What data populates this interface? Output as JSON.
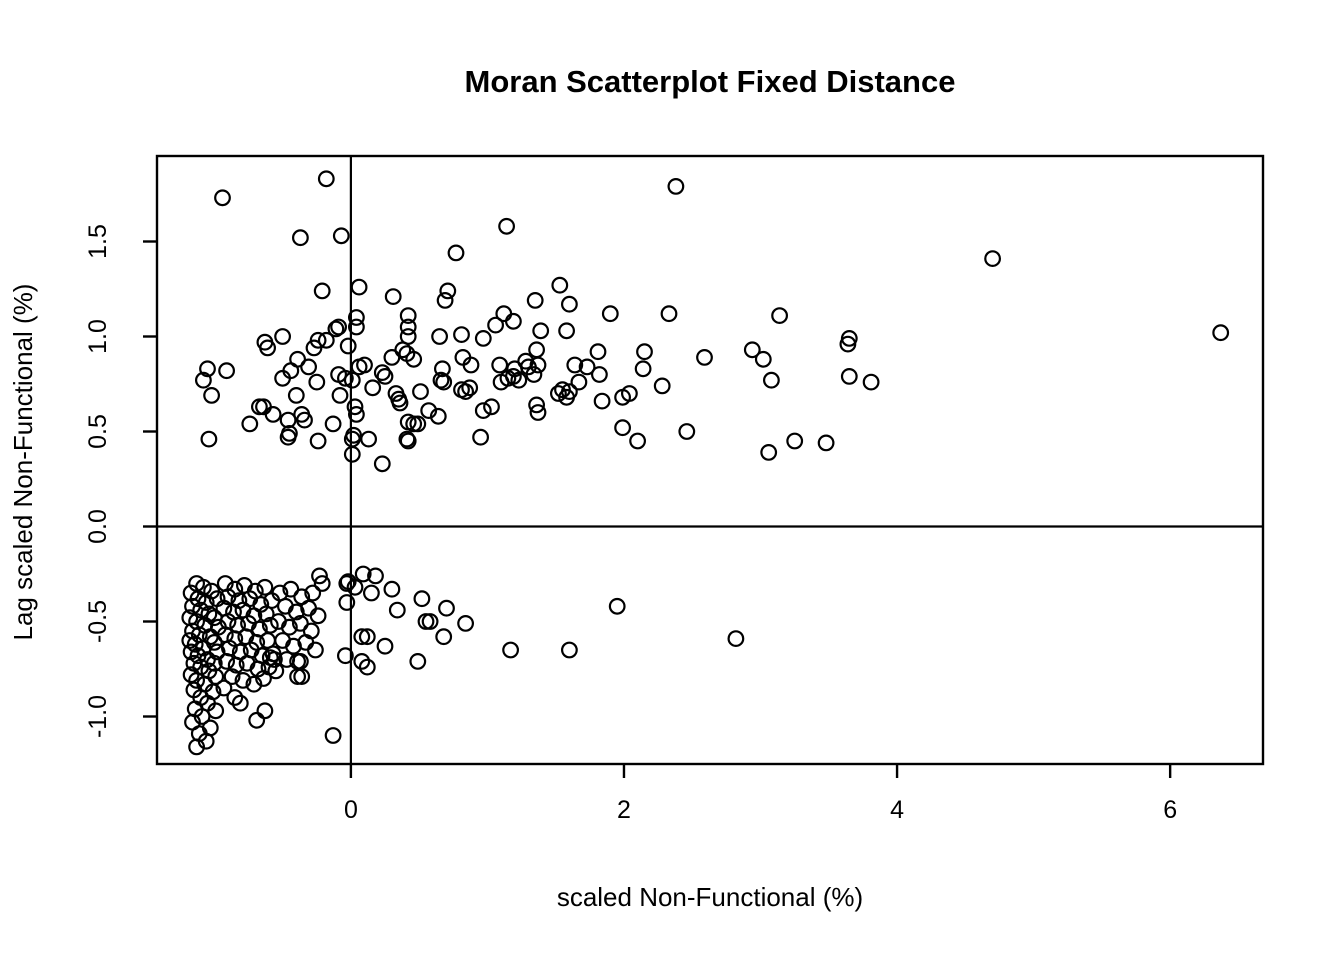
{
  "chart_data": {
    "type": "scatter",
    "title": "Moran Scatterplot Fixed Distance",
    "xlabel": "scaled Non-Functional (%)",
    "ylabel": "Lag scaled Non-Functional (%)",
    "xlim": [
      -1.42,
      6.68
    ],
    "ylim": [
      -1.25,
      1.95
    ],
    "x_tick_values": [
      0,
      2,
      4,
      6
    ],
    "x_tick_labels": [
      "0",
      "2",
      "4",
      "6"
    ],
    "y_tick_values": [
      -1.0,
      -0.5,
      0.0,
      0.5,
      1.0,
      1.5
    ],
    "y_tick_labels": [
      "-1.0",
      "-0.5",
      "0.0",
      "0.5",
      "1.0",
      "1.5"
    ],
    "grid": false,
    "legend": null,
    "reference_lines": {
      "vertical_x": 0,
      "horizontal_y": 0
    },
    "marker": {
      "shape": "open-circle",
      "color": "#000000",
      "radius_px": 7.3,
      "stroke_px": 2.2
    },
    "points": [
      [
        -0.18,
        1.83
      ],
      [
        -0.94,
        1.73
      ],
      [
        2.38,
        1.79
      ],
      [
        -0.37,
        1.52
      ],
      [
        -0.07,
        1.53
      ],
      [
        1.14,
        1.58
      ],
      [
        0.77,
        1.44
      ],
      [
        4.7,
        1.41
      ],
      [
        6.37,
        1.02
      ],
      [
        0.06,
        1.26
      ],
      [
        -0.21,
        1.24
      ],
      [
        0.31,
        1.21
      ],
      [
        0.71,
        1.24
      ],
      [
        0.69,
        1.19
      ],
      [
        1.53,
        1.27
      ],
      [
        1.35,
        1.19
      ],
      [
        1.6,
        1.17
      ],
      [
        0.42,
        1.11
      ],
      [
        0.42,
        1.05
      ],
      [
        0.42,
        1.0
      ],
      [
        0.04,
        1.1
      ],
      [
        0.04,
        1.05
      ],
      [
        1.12,
        1.12
      ],
      [
        1.19,
        1.08
      ],
      [
        1.06,
        1.06
      ],
      [
        -0.09,
        1.05
      ],
      [
        -0.11,
        1.04
      ],
      [
        1.9,
        1.12
      ],
      [
        2.33,
        1.12
      ],
      [
        3.14,
        1.11
      ],
      [
        1.39,
        1.03
      ],
      [
        1.58,
        1.03
      ],
      [
        -0.5,
        1.0
      ],
      [
        0.65,
        1.0
      ],
      [
        0.81,
        1.01
      ],
      [
        0.97,
        0.99
      ],
      [
        -0.18,
        0.98
      ],
      [
        -0.63,
        0.97
      ],
      [
        -0.24,
        0.98
      ],
      [
        3.65,
        0.99
      ],
      [
        -0.61,
        0.94
      ],
      [
        -0.27,
        0.94
      ],
      [
        -0.02,
        0.95
      ],
      [
        0.1,
        0.85
      ],
      [
        0.06,
        0.84
      ],
      [
        0.3,
        0.89
      ],
      [
        0.38,
        0.93
      ],
      [
        0.41,
        0.91
      ],
      [
        0.46,
        0.88
      ],
      [
        0.82,
        0.89
      ],
      [
        0.88,
        0.85
      ],
      [
        1.09,
        0.85
      ],
      [
        1.2,
        0.83
      ],
      [
        1.28,
        0.87
      ],
      [
        1.3,
        0.84
      ],
      [
        1.36,
        0.93
      ],
      [
        1.37,
        0.85
      ],
      [
        1.34,
        0.8
      ],
      [
        1.64,
        0.85
      ],
      [
        1.73,
        0.84
      ],
      [
        1.81,
        0.92
      ],
      [
        1.82,
        0.8
      ],
      [
        2.15,
        0.92
      ],
      [
        2.14,
        0.83
      ],
      [
        2.59,
        0.89
      ],
      [
        2.94,
        0.93
      ],
      [
        3.02,
        0.88
      ],
      [
        3.64,
        0.96
      ],
      [
        -1.05,
        0.83
      ],
      [
        -0.91,
        0.82
      ],
      [
        -1.08,
        0.77
      ],
      [
        -0.39,
        0.88
      ],
      [
        -0.31,
        0.84
      ],
      [
        -0.44,
        0.82
      ],
      [
        -0.5,
        0.78
      ],
      [
        -0.25,
        0.76
      ],
      [
        -0.09,
        0.8
      ],
      [
        -0.04,
        0.78
      ],
      [
        0.01,
        0.77
      ],
      [
        0.23,
        0.81
      ],
      [
        0.25,
        0.79
      ],
      [
        0.16,
        0.73
      ],
      [
        0.51,
        0.71
      ],
      [
        0.67,
        0.83
      ],
      [
        0.66,
        0.77
      ],
      [
        0.68,
        0.76
      ],
      [
        0.81,
        0.72
      ],
      [
        0.84,
        0.71
      ],
      [
        0.87,
        0.73
      ],
      [
        1.1,
        0.76
      ],
      [
        1.15,
        0.78
      ],
      [
        1.19,
        0.79
      ],
      [
        1.23,
        0.77
      ],
      [
        1.52,
        0.7
      ],
      [
        1.55,
        0.72
      ],
      [
        1.58,
        0.68
      ],
      [
        1.6,
        0.71
      ],
      [
        1.67,
        0.76
      ],
      [
        2.28,
        0.74
      ],
      [
        3.08,
        0.77
      ],
      [
        3.65,
        0.79
      ],
      [
        3.81,
        0.76
      ],
      [
        -1.02,
        0.69
      ],
      [
        -0.4,
        0.69
      ],
      [
        -0.67,
        0.63
      ],
      [
        -0.64,
        0.63
      ],
      [
        -0.08,
        0.69
      ],
      [
        0.03,
        0.63
      ],
      [
        0.33,
        0.7
      ],
      [
        0.35,
        0.67
      ],
      [
        0.36,
        0.65
      ],
      [
        1.36,
        0.64
      ],
      [
        1.37,
        0.6
      ],
      [
        1.84,
        0.66
      ],
      [
        1.99,
        0.68
      ],
      [
        2.04,
        0.7
      ],
      [
        -0.57,
        0.59
      ],
      [
        -0.46,
        0.56
      ],
      [
        -0.36,
        0.59
      ],
      [
        -0.34,
        0.56
      ],
      [
        -0.74,
        0.54
      ],
      [
        -0.13,
        0.54
      ],
      [
        0.04,
        0.59
      ],
      [
        0.42,
        0.55
      ],
      [
        0.46,
        0.54
      ],
      [
        0.49,
        0.54
      ],
      [
        0.57,
        0.61
      ],
      [
        0.64,
        0.58
      ],
      [
        0.97,
        0.61
      ],
      [
        1.03,
        0.63
      ],
      [
        -0.45,
        0.49
      ],
      [
        -1.04,
        0.46
      ],
      [
        -0.46,
        0.47
      ],
      [
        -0.24,
        0.45
      ],
      [
        0.02,
        0.48
      ],
      [
        0.01,
        0.46
      ],
      [
        0.13,
        0.46
      ],
      [
        0.41,
        0.46
      ],
      [
        0.42,
        0.45
      ],
      [
        0.95,
        0.47
      ],
      [
        1.99,
        0.52
      ],
      [
        2.1,
        0.45
      ],
      [
        2.46,
        0.5
      ],
      [
        3.25,
        0.45
      ],
      [
        3.48,
        0.44
      ],
      [
        0.01,
        0.38
      ],
      [
        0.23,
        0.33
      ],
      [
        3.06,
        0.39
      ],
      [
        0.09,
        -0.25
      ],
      [
        0.18,
        -0.26
      ],
      [
        -0.02,
        -0.29
      ],
      [
        0.03,
        -0.32
      ],
      [
        0.15,
        -0.35
      ],
      [
        0.3,
        -0.33
      ],
      [
        0.34,
        -0.44
      ],
      [
        0.52,
        -0.38
      ],
      [
        0.55,
        -0.5
      ],
      [
        0.58,
        -0.5
      ],
      [
        0.7,
        -0.43
      ],
      [
        0.84,
        -0.51
      ],
      [
        0.68,
        -0.58
      ],
      [
        0.08,
        -0.58
      ],
      [
        0.12,
        -0.58
      ],
      [
        0.25,
        -0.63
      ],
      [
        0.49,
        -0.71
      ],
      [
        0.08,
        -0.71
      ],
      [
        0.12,
        -0.74
      ],
      [
        -0.04,
        -0.68
      ],
      [
        -0.13,
        -1.1
      ],
      [
        1.17,
        -0.65
      ],
      [
        1.95,
        -0.42
      ],
      [
        1.6,
        -0.65
      ],
      [
        2.82,
        -0.59
      ],
      [
        -0.23,
        -0.26
      ],
      [
        -0.21,
        -0.3
      ],
      [
        -0.03,
        -0.3
      ],
      [
        -0.03,
        -0.4
      ],
      [
        -0.39,
        -0.71
      ],
      [
        -0.37,
        -0.71
      ],
      [
        -0.39,
        -0.79
      ],
      [
        -0.36,
        -0.79
      ],
      [
        -0.69,
        -1.02
      ],
      [
        -0.63,
        -0.97
      ],
      [
        -0.59,
        -0.69
      ],
      [
        -0.56,
        -0.7
      ],
      [
        -0.85,
        -0.9
      ],
      [
        -0.81,
        -0.93
      ],
      [
        -1.13,
        -0.3
      ],
      [
        -1.08,
        -0.32
      ],
      [
        -1.17,
        -0.35
      ],
      [
        -1.02,
        -0.34
      ],
      [
        -1.12,
        -0.38
      ],
      [
        -1.06,
        -0.4
      ],
      [
        -1.16,
        -0.42
      ],
      [
        -0.98,
        -0.38
      ],
      [
        -1.1,
        -0.44
      ],
      [
        -1.04,
        -0.46
      ],
      [
        -1.18,
        -0.48
      ],
      [
        -1.0,
        -0.48
      ],
      [
        -1.13,
        -0.5
      ],
      [
        -1.07,
        -0.52
      ],
      [
        -1.16,
        -0.55
      ],
      [
        -0.97,
        -0.53
      ],
      [
        -1.11,
        -0.57
      ],
      [
        -1.03,
        -0.58
      ],
      [
        -1.18,
        -0.6
      ],
      [
        -1.0,
        -0.61
      ],
      [
        -1.14,
        -0.62
      ],
      [
        -1.08,
        -0.64
      ],
      [
        -1.17,
        -0.66
      ],
      [
        -0.98,
        -0.66
      ],
      [
        -1.12,
        -0.68
      ],
      [
        -1.05,
        -0.7
      ],
      [
        -1.15,
        -0.72
      ],
      [
        -1.0,
        -0.72
      ],
      [
        -1.1,
        -0.74
      ],
      [
        -1.04,
        -0.76
      ],
      [
        -1.17,
        -0.78
      ],
      [
        -0.99,
        -0.79
      ],
      [
        -1.13,
        -0.81
      ],
      [
        -1.07,
        -0.83
      ],
      [
        -1.15,
        -0.86
      ],
      [
        -1.01,
        -0.87
      ],
      [
        -1.1,
        -0.9
      ],
      [
        -1.05,
        -0.93
      ],
      [
        -1.14,
        -0.96
      ],
      [
        -0.99,
        -0.97
      ],
      [
        -1.09,
        -1.0
      ],
      [
        -1.16,
        -1.03
      ],
      [
        -1.03,
        -1.06
      ],
      [
        -1.11,
        -1.09
      ],
      [
        -1.06,
        -1.13
      ],
      [
        -1.13,
        -1.16
      ],
      [
        -0.92,
        -0.3
      ],
      [
        -0.85,
        -0.33
      ],
      [
        -0.78,
        -0.31
      ],
      [
        -0.7,
        -0.34
      ],
      [
        -0.63,
        -0.32
      ],
      [
        -0.9,
        -0.37
      ],
      [
        -0.82,
        -0.39
      ],
      [
        -0.74,
        -0.38
      ],
      [
        -0.66,
        -0.41
      ],
      [
        -0.58,
        -0.39
      ],
      [
        -0.93,
        -0.43
      ],
      [
        -0.86,
        -0.45
      ],
      [
        -0.79,
        -0.44
      ],
      [
        -0.71,
        -0.47
      ],
      [
        -0.62,
        -0.46
      ],
      [
        -0.9,
        -0.5
      ],
      [
        -0.83,
        -0.52
      ],
      [
        -0.75,
        -0.51
      ],
      [
        -0.67,
        -0.54
      ],
      [
        -0.59,
        -0.52
      ],
      [
        -0.92,
        -0.57
      ],
      [
        -0.85,
        -0.59
      ],
      [
        -0.77,
        -0.58
      ],
      [
        -0.69,
        -0.61
      ],
      [
        -0.61,
        -0.6
      ],
      [
        -0.89,
        -0.64
      ],
      [
        -0.81,
        -0.66
      ],
      [
        -0.73,
        -0.65
      ],
      [
        -0.65,
        -0.68
      ],
      [
        -0.57,
        -0.67
      ],
      [
        -0.91,
        -0.71
      ],
      [
        -0.84,
        -0.73
      ],
      [
        -0.76,
        -0.72
      ],
      [
        -0.68,
        -0.75
      ],
      [
        -0.6,
        -0.74
      ],
      [
        -0.87,
        -0.79
      ],
      [
        -0.79,
        -0.81
      ],
      [
        -0.71,
        -0.83
      ],
      [
        -0.93,
        -0.85
      ],
      [
        -0.64,
        -0.8
      ],
      [
        -0.52,
        -0.35
      ],
      [
        -0.44,
        -0.33
      ],
      [
        -0.36,
        -0.37
      ],
      [
        -0.28,
        -0.35
      ],
      [
        -0.48,
        -0.42
      ],
      [
        -0.4,
        -0.45
      ],
      [
        -0.31,
        -0.43
      ],
      [
        -0.24,
        -0.47
      ],
      [
        -0.53,
        -0.5
      ],
      [
        -0.45,
        -0.53
      ],
      [
        -0.37,
        -0.51
      ],
      [
        -0.29,
        -0.55
      ],
      [
        -0.5,
        -0.6
      ],
      [
        -0.42,
        -0.63
      ],
      [
        -0.33,
        -0.61
      ],
      [
        -0.26,
        -0.65
      ],
      [
        -0.47,
        -0.7
      ],
      [
        -0.55,
        -0.76
      ]
    ]
  }
}
